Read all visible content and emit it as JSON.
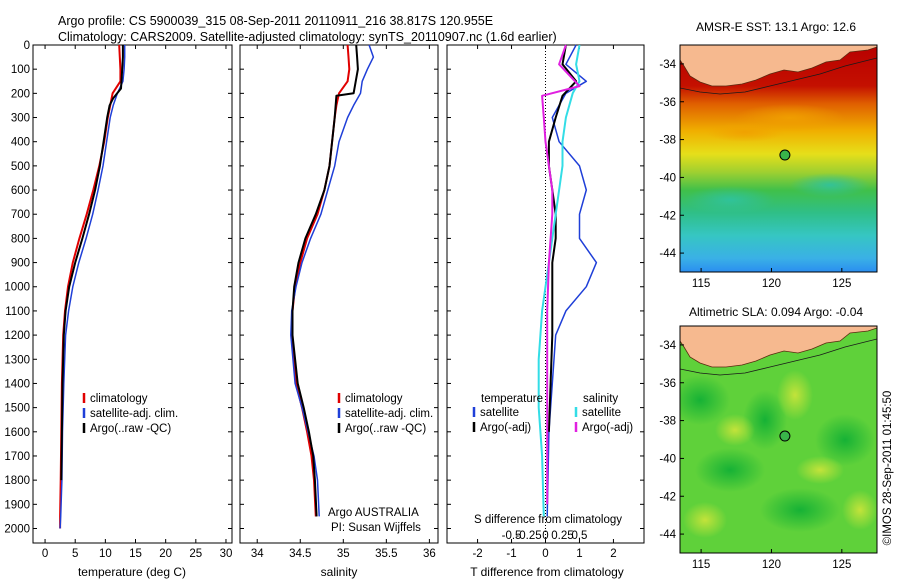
{
  "header": {
    "title_line1": "Argo profile: CS 5900039_315 08-Sep-2011 20110911_216 38.817S 120.955E",
    "title_line2": "Climatology: CARS2009. Satellite-adjusted climatology: synTS_20110907.nc (1.6d earlier)"
  },
  "colors": {
    "climatology": "#e00000",
    "satellite": "#1f3fd8",
    "argo": "#000000",
    "sat_salinity": "#33dde6",
    "argo_salinity": "#e020e0",
    "land": "#f6b98f"
  },
  "chart_data": [
    {
      "id": "temperature",
      "type": "line",
      "xlabel": "temperature (deg C)",
      "ylabel": "",
      "xlim": [
        -2,
        31
      ],
      "ylim": [
        2060,
        0
      ],
      "y_reversed": true,
      "xticks": [
        0,
        5,
        10,
        15,
        20,
        25,
        30
      ],
      "yticks": [
        0,
        100,
        200,
        300,
        400,
        500,
        600,
        700,
        800,
        900,
        1000,
        1100,
        1200,
        1300,
        1400,
        1500,
        1600,
        1700,
        1800,
        1900,
        2000
      ],
      "legend_position": "bottom-right",
      "series": [
        {
          "name": "climatology",
          "color": "#e00000",
          "width": 2,
          "x": [
            12.3,
            12.4,
            12.5,
            12.5,
            11.2,
            10.8,
            10.4,
            9.8,
            9.0,
            8.0,
            6.9,
            5.7,
            4.6,
            3.8,
            3.3,
            3.0,
            2.8,
            2.7,
            2.6,
            2.5,
            2.5
          ],
          "y": [
            0,
            50,
            100,
            150,
            200,
            250,
            300,
            400,
            500,
            600,
            700,
            800,
            900,
            1000,
            1100,
            1200,
            1400,
            1600,
            1800,
            1950,
            2000
          ]
        },
        {
          "name": "satellite-adj. clim.",
          "color": "#1f3fd8",
          "width": 1.5,
          "x": [
            13.2,
            13.2,
            13.1,
            12.9,
            12.0,
            11.3,
            10.8,
            10.2,
            9.6,
            8.8,
            7.9,
            6.8,
            5.6,
            4.6,
            3.9,
            3.4,
            3.1,
            2.9,
            2.8,
            2.6,
            2.5
          ],
          "y": [
            0,
            50,
            100,
            150,
            200,
            250,
            300,
            400,
            500,
            600,
            700,
            800,
            900,
            1000,
            1100,
            1200,
            1400,
            1600,
            1800,
            1950,
            2000
          ]
        },
        {
          "name": "Argo(..raw -QC)",
          "color": "#000000",
          "width": 2,
          "x": [
            12.9,
            12.9,
            12.8,
            12.6,
            11.3,
            10.7,
            10.3,
            9.7,
            9.1,
            8.3,
            7.3,
            6.2,
            5.0,
            4.0,
            3.4,
            3.1,
            2.9,
            2.8,
            2.7
          ],
          "y": [
            0,
            50,
            100,
            180,
            220,
            250,
            300,
            400,
            500,
            600,
            700,
            800,
            900,
            1000,
            1100,
            1200,
            1400,
            1600,
            1800
          ]
        }
      ]
    },
    {
      "id": "salinity",
      "type": "line",
      "xlabel": "salinity",
      "ylabel": "",
      "xlim": [
        33.8,
        36.1
      ],
      "ylim": [
        2060,
        0
      ],
      "y_reversed": true,
      "xticks": [
        34,
        34.5,
        35,
        35.5,
        36
      ],
      "legend_position": "bottom-right",
      "annotation_line1": "Argo AUSTRALIA",
      "annotation_line2": "PI: Susan Wijffels",
      "series": [
        {
          "name": "climatology",
          "color": "#e00000",
          "width": 2,
          "x": [
            35.05,
            35.06,
            35.07,
            35.05,
            34.95,
            34.92,
            34.9,
            34.87,
            34.84,
            34.78,
            34.7,
            34.58,
            34.5,
            34.44,
            34.41,
            34.4,
            34.45,
            34.52,
            34.58,
            34.63,
            34.66,
            34.68
          ],
          "y": [
            0,
            50,
            100,
            150,
            200,
            250,
            300,
            400,
            500,
            600,
            700,
            800,
            900,
            1000,
            1100,
            1200,
            1400,
            1500,
            1600,
            1700,
            1800,
            1950
          ]
        },
        {
          "name": "satellite-adj. clim.",
          "color": "#1f3fd8",
          "width": 1.5,
          "x": [
            35.3,
            35.35,
            35.28,
            35.22,
            35.2,
            35.12,
            35.05,
            34.95,
            34.9,
            34.82,
            34.74,
            34.62,
            34.52,
            34.45,
            34.4,
            34.39,
            34.44,
            34.52,
            34.59,
            34.66,
            34.7,
            34.72
          ],
          "y": [
            0,
            50,
            100,
            150,
            200,
            250,
            300,
            400,
            500,
            600,
            700,
            800,
            900,
            1000,
            1100,
            1200,
            1400,
            1500,
            1600,
            1700,
            1800,
            1950
          ]
        },
        {
          "name": "Argo(..raw -QC)",
          "color": "#000000",
          "width": 2,
          "x": [
            35.15,
            35.16,
            35.17,
            35.12,
            34.92,
            34.9,
            34.87,
            34.84,
            34.78,
            34.68,
            34.56,
            34.48,
            34.43,
            34.41,
            34.41,
            34.47,
            34.54,
            34.6,
            34.65,
            34.67,
            34.69
          ],
          "y": [
            0,
            50,
            100,
            200,
            210,
            300,
            400,
            500,
            600,
            700,
            800,
            900,
            1000,
            1100,
            1200,
            1400,
            1500,
            1600,
            1700,
            1800,
            1950
          ]
        }
      ]
    },
    {
      "id": "difference",
      "type": "line",
      "xlabel": "T difference from climatology",
      "top_axis_label": "S difference from climatology",
      "xlim": [
        -2.9,
        2.9
      ],
      "ylim": [
        2060,
        0
      ],
      "y_reversed": true,
      "xticks": [
        -2,
        -1,
        0,
        1,
        2
      ],
      "top_ticks": [
        "-0.5",
        "-0.25",
        "0",
        "0.25",
        "0.5"
      ],
      "legend_position": "bottom",
      "legend_heading_left": "temperature",
      "legend_heading_right": "salinity",
      "series": [
        {
          "name": "satellite",
          "group": "temperature",
          "color": "#1f3fd8",
          "width": 1.5,
          "x": [
            0.9,
            0.6,
            1.2,
            0.6,
            0.4,
            0.2,
            0.4,
            1.0,
            1.2,
            1.0,
            1.0,
            1.5,
            1.2,
            0.6,
            0.3,
            0.2,
            0.1,
            0.05
          ],
          "y": [
            0,
            80,
            150,
            200,
            250,
            300,
            400,
            500,
            600,
            700,
            800,
            900,
            1000,
            1100,
            1200,
            1400,
            1600,
            1950
          ]
        },
        {
          "name": "Argo(-adj)",
          "group": "temperature",
          "color": "#000000",
          "width": 2,
          "x": [
            0.6,
            0.5,
            0.9,
            0.5,
            0.3,
            0.1,
            0.1,
            0.2,
            0.3,
            0.3,
            0.2,
            0.2,
            0.2,
            0.1
          ],
          "y": [
            0,
            80,
            150,
            210,
            300,
            400,
            500,
            600,
            700,
            800,
            900,
            1000,
            1200,
            1600
          ]
        },
        {
          "name": "satellite",
          "group": "salinity",
          "color": "#33dde6",
          "width": 2,
          "x": [
            1.0,
            0.9,
            1.0,
            0.8,
            0.6,
            0.5,
            0.5,
            0.3,
            0.1,
            -0.1,
            -0.2,
            -0.2,
            -0.1,
            -0.05
          ],
          "y": [
            0,
            80,
            150,
            200,
            300,
            400,
            500,
            700,
            900,
            1100,
            1300,
            1500,
            1700,
            1950
          ]
        },
        {
          "name": "Argo(-adj)",
          "group": "salinity",
          "color": "#e020e0",
          "width": 2,
          "x": [
            0.6,
            0.4,
            1.0,
            -0.1,
            -0.05,
            0.0,
            0.1,
            0.2,
            0.2,
            0.1,
            0.05,
            0.05,
            0.05
          ],
          "y": [
            0,
            80,
            170,
            210,
            300,
            400,
            500,
            600,
            700,
            900,
            1100,
            1400,
            1900
          ]
        }
      ]
    },
    {
      "id": "sst_map",
      "type": "heatmap",
      "title": "AMSR-E SST: 13.1 Argo: 12.6",
      "xlim": [
        113.5,
        127.5
      ],
      "ylim": [
        -45.0,
        -33.0
      ],
      "xticks": [
        115,
        120,
        125
      ],
      "yticks": [
        -34,
        -36,
        -38,
        -40,
        -42,
        -44
      ],
      "argo_position": {
        "lon": 120.955,
        "lat": -38.817
      },
      "value_bands": [
        {
          "lat": -35.2,
          "value": 19
        },
        {
          "lat": -36.8,
          "value": 16
        },
        {
          "lat": -38.5,
          "value": 14
        },
        {
          "lat": -40.8,
          "value": 12
        },
        {
          "lat": -45.0,
          "value": 10
        }
      ]
    },
    {
      "id": "sla_map",
      "type": "heatmap",
      "title": "Altimetric SLA: 0.094 Argo: -0.04",
      "xlim": [
        113.5,
        127.5
      ],
      "ylim": [
        -45.0,
        -33.0
      ],
      "xticks": [
        115,
        120,
        125
      ],
      "yticks": [
        -34,
        -36,
        -38,
        -40,
        -42,
        -44
      ],
      "argo_position": {
        "lon": 120.955,
        "lat": -38.817
      }
    }
  ],
  "credit": "©IMOS 28-Sep-2011 01:45:50"
}
